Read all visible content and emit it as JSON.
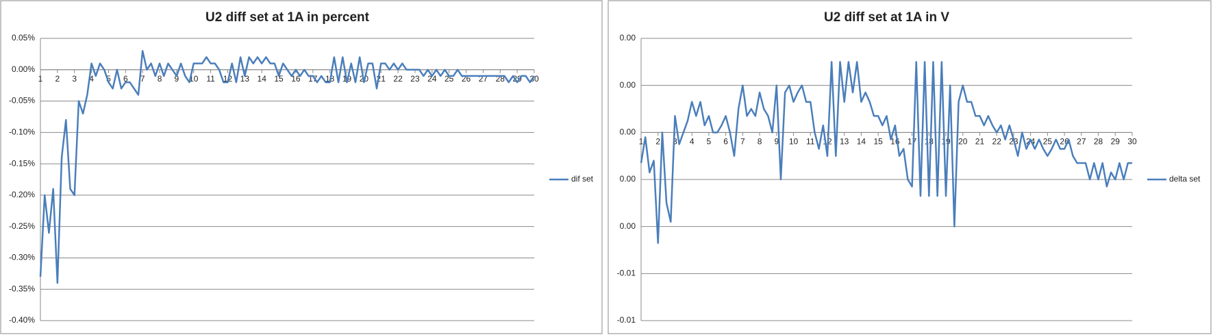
{
  "chart_data": [
    {
      "type": "line",
      "title": "U2 diff set at 1A in percent",
      "legend": "right",
      "grid": true,
      "x": [
        1,
        1.25,
        1.5,
        1.75,
        2,
        2.25,
        2.5,
        2.75,
        3,
        3.25,
        3.5,
        3.75,
        4,
        4.25,
        4.5,
        4.75,
        5,
        5.25,
        5.5,
        5.75,
        6,
        6.25,
        6.5,
        6.75,
        7,
        7.25,
        7.5,
        7.75,
        8,
        8.25,
        8.5,
        8.75,
        9,
        9.25,
        9.5,
        9.75,
        10,
        10.25,
        10.5,
        10.75,
        11,
        11.25,
        11.5,
        11.75,
        12,
        12.25,
        12.5,
        12.75,
        13,
        13.25,
        13.5,
        13.75,
        14,
        14.25,
        14.5,
        14.75,
        15,
        15.25,
        15.5,
        15.75,
        16,
        16.25,
        16.5,
        16.75,
        17,
        17.25,
        17.5,
        17.75,
        18,
        18.25,
        18.5,
        18.75,
        19,
        19.25,
        19.5,
        19.75,
        20,
        20.25,
        20.5,
        20.75,
        21,
        21.25,
        21.5,
        21.75,
        22,
        22.25,
        22.5,
        22.75,
        23,
        23.25,
        23.5,
        23.75,
        24,
        24.25,
        24.5,
        24.75,
        25,
        25.25,
        25.5,
        25.75,
        26,
        26.25,
        26.5,
        26.75,
        27,
        27.25,
        27.5,
        27.75,
        28,
        28.25,
        28.5,
        28.75,
        29,
        29.25,
        29.5,
        29.75,
        30
      ],
      "series": [
        {
          "name": "dif set",
          "color": "#4a7ebb",
          "values": [
            -0.33,
            -0.2,
            -0.26,
            -0.19,
            -0.34,
            -0.14,
            -0.08,
            -0.19,
            -0.2,
            -0.05,
            -0.07,
            -0.04,
            0.01,
            -0.01,
            0.01,
            0,
            -0.02,
            -0.03,
            0,
            -0.03,
            -0.02,
            -0.02,
            -0.03,
            -0.04,
            0.03,
            0,
            0.01,
            -0.01,
            0.01,
            -0.01,
            0.01,
            0,
            -0.01,
            0.01,
            -0.01,
            -0.02,
            0.01,
            0.01,
            0.01,
            0.02,
            0.01,
            0.01,
            0,
            -0.02,
            -0.02,
            0.01,
            -0.02,
            0.02,
            -0.01,
            0.02,
            0.01,
            0.02,
            0.01,
            0.02,
            0.01,
            0.01,
            -0.01,
            0.01,
            0,
            -0.01,
            0,
            -0.01,
            0,
            -0.01,
            -0.01,
            -0.02,
            -0.01,
            -0.02,
            -0.02,
            0.02,
            -0.02,
            0.02,
            -0.02,
            0.01,
            -0.02,
            0.02,
            -0.02,
            0.01,
            0.01,
            -0.03,
            0.01,
            0.01,
            0,
            0.01,
            0,
            0.01,
            0,
            0,
            0,
            0,
            -0.01,
            0,
            -0.01,
            0,
            -0.01,
            0,
            -0.01,
            -0.01,
            0,
            -0.01,
            -0.01,
            -0.01,
            -0.01,
            -0.01,
            -0.01,
            -0.01,
            -0.01,
            -0.01,
            -0.01,
            -0.01,
            -0.02,
            -0.01,
            -0.02,
            -0.01,
            -0.01,
            -0.02,
            -0.01
          ]
        }
      ],
      "xlim": [
        1,
        30
      ],
      "xticks": [
        1,
        2,
        3,
        4,
        5,
        6,
        7,
        8,
        9,
        10,
        11,
        12,
        13,
        14,
        15,
        16,
        17,
        18,
        19,
        20,
        21,
        22,
        23,
        24,
        25,
        26,
        27,
        28,
        29,
        30
      ],
      "ylim": [
        -0.4,
        0.05
      ],
      "yticks": [
        {
          "value": 0.05,
          "label": "0.05%"
        },
        {
          "value": 0,
          "label": "0.00%"
        },
        {
          "value": -0.05,
          "label": "-0.05%"
        },
        {
          "value": -0.1,
          "label": "-0.10%"
        },
        {
          "value": -0.15,
          "label": "-0.15%"
        },
        {
          "value": -0.2,
          "label": "-0.20%"
        },
        {
          "value": -0.25,
          "label": "-0.25%"
        },
        {
          "value": -0.3,
          "label": "-0.30%"
        },
        {
          "value": -0.35,
          "label": "-0.35%"
        },
        {
          "value": -0.4,
          "label": "-0.40%"
        }
      ]
    },
    {
      "type": "line",
      "title": "U2 diff set at 1A in V",
      "legend": "right",
      "grid": true,
      "x": [
        1,
        1.25,
        1.5,
        1.75,
        2,
        2.25,
        2.5,
        2.75,
        3,
        3.25,
        3.5,
        3.75,
        4,
        4.25,
        4.5,
        4.75,
        5,
        5.25,
        5.5,
        5.75,
        6,
        6.25,
        6.5,
        6.75,
        7,
        7.25,
        7.5,
        7.75,
        8,
        8.25,
        8.5,
        8.75,
        9,
        9.25,
        9.5,
        9.75,
        10,
        10.25,
        10.5,
        10.75,
        11,
        11.25,
        11.5,
        11.75,
        12,
        12.25,
        12.5,
        12.75,
        13,
        13.25,
        13.5,
        13.75,
        14,
        14.25,
        14.5,
        14.75,
        15,
        15.25,
        15.5,
        15.75,
        16,
        16.25,
        16.5,
        16.75,
        17,
        17.25,
        17.5,
        17.75,
        18,
        18.25,
        18.5,
        18.75,
        19,
        19.25,
        19.5,
        19.75,
        20,
        20.25,
        20.5,
        20.75,
        21,
        21.25,
        21.5,
        21.75,
        22,
        22.25,
        22.5,
        22.75,
        23,
        23.25,
        23.5,
        23.75,
        24,
        24.25,
        24.5,
        24.75,
        25,
        25.25,
        25.5,
        25.75,
        26,
        26.25,
        26.5,
        26.75,
        27,
        27.25,
        27.5,
        27.75,
        28,
        28.25,
        28.5,
        28.75,
        29,
        29.25,
        29.5,
        29.75,
        30
      ],
      "series": [
        {
          "name": "delta set",
          "color": "#4a7ebb",
          "values": [
            -0.0013,
            -0.0002,
            -0.0017,
            -0.0012,
            -0.0047,
            0,
            -0.003,
            -0.0038,
            0.0007,
            -0.0005,
            0,
            0.0005,
            0.0013,
            0.0007,
            0.0013,
            0.0003,
            0.0007,
            0,
            0,
            0.0003,
            0.0007,
            0,
            -0.001,
            0.001,
            0.002,
            0.0007,
            0.001,
            0.0007,
            0.0017,
            0.001,
            0.0007,
            0,
            0.002,
            -0.002,
            0.0017,
            0.002,
            0.0013,
            0.0017,
            0.002,
            0.0013,
            0.0013,
            0,
            -0.0007,
            0.0003,
            -0.001,
            0.003,
            -0.001,
            0.003,
            0.0013,
            0.003,
            0.0017,
            0.003,
            0.0013,
            0.0017,
            0.0013,
            0.0007,
            0.0007,
            0.0003,
            0.0007,
            -0.0003,
            0.0003,
            -0.001,
            -0.0007,
            -0.002,
            -0.0023,
            0.003,
            -0.0027,
            0.003,
            -0.0027,
            0.003,
            -0.0027,
            0.003,
            -0.0027,
            0.002,
            -0.004,
            0.0013,
            0.002,
            0.0013,
            0.0013,
            0.0007,
            0.0007,
            0.0003,
            0.0007,
            0.0003,
            0,
            0.0003,
            -0.0003,
            0.0003,
            -0.0003,
            -0.001,
            0,
            -0.0007,
            -0.0003,
            -0.0007,
            -0.0003,
            -0.0007,
            -0.001,
            -0.0007,
            -0.0003,
            -0.0007,
            -0.0007,
            -0.0003,
            -0.001,
            -0.0013,
            -0.0013,
            -0.0013,
            -0.002,
            -0.0013,
            -0.002,
            -0.0013,
            -0.0023,
            -0.0017,
            -0.002,
            -0.0013,
            -0.002,
            -0.0013,
            -0.0013
          ]
        }
      ],
      "xlim": [
        1,
        30
      ],
      "xticks": [
        1,
        2,
        3,
        4,
        5,
        6,
        7,
        8,
        9,
        10,
        11,
        12,
        13,
        14,
        15,
        16,
        17,
        18,
        19,
        20,
        21,
        22,
        23,
        24,
        25,
        26,
        27,
        28,
        29,
        30
      ],
      "ylim": [
        -0.008,
        0.004
      ],
      "yticks": [
        {
          "value": 0.004,
          "label": "0.00"
        },
        {
          "value": 0.002,
          "label": "0.00"
        },
        {
          "value": 0,
          "label": "0.00"
        },
        {
          "value": -0.002,
          "label": "0.00"
        },
        {
          "value": -0.004,
          "label": "0.00"
        },
        {
          "value": -0.006,
          "label": "-0.01"
        },
        {
          "value": -0.008,
          "label": "-0.01"
        }
      ]
    }
  ]
}
